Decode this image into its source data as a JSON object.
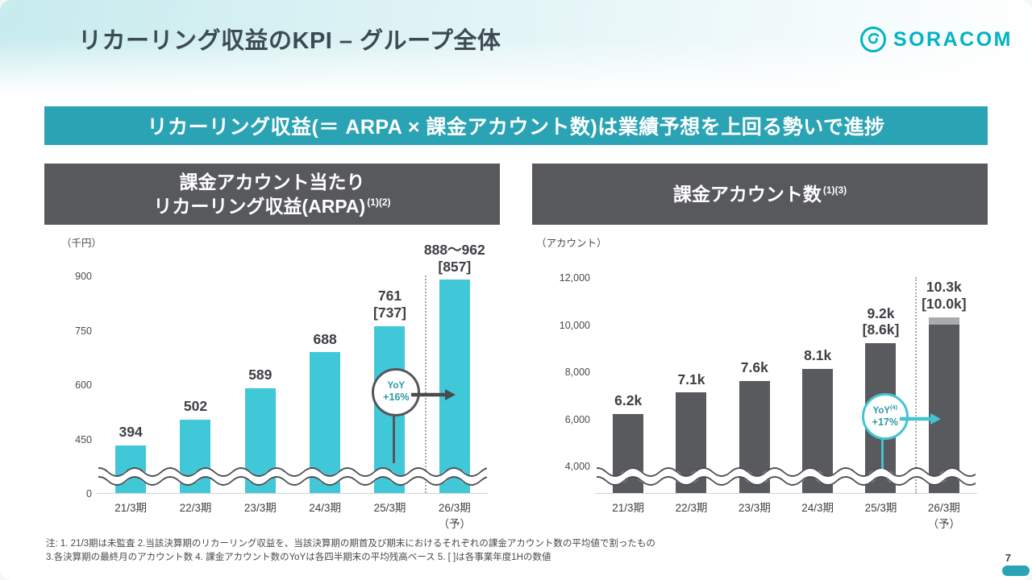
{
  "header": {
    "title": "リカーリング収益のKPI – グループ全体",
    "logo_text": "SORACOM"
  },
  "banner": {
    "text": "リカーリング収益(＝ ARPA × 課金アカウント数)は業績予想を上回る勢いで進捗"
  },
  "footnotes": {
    "line1": "注: 1. 21/3期は未監査  2.当該決算期のリカーリング収益を、当該決算期の期首及び期末におけるそれぞれの課金アカウント数の平均値で割ったもの",
    "line2": "3.各決算期の最終月のアカウント数  4. 課金アカウント数のYoYは各四半期末の平均残高ベース  5. [ ]は各事業年度1Hの数値"
  },
  "page_number": "7",
  "colors": {
    "accent_teal": "#2AA3B4",
    "logo_teal": "#00B3C6",
    "header_gray": "#58595D",
    "bar_teal": "#40C8D8",
    "bar_gray": "#595A5E",
    "bar_gray_light": "#A9ABAE",
    "title_color": "#3C4B52"
  },
  "chart_data": [
    {
      "id": "arpa",
      "type": "bar",
      "header": {
        "line1": "課金アカウント当たり",
        "line2": "リカーリング収益(ARPA)",
        "superscript": "(1)(2)"
      },
      "unit": "（千円）",
      "ylabel": "千円",
      "categories": [
        "21/3期",
        "22/3期",
        "23/3期",
        "24/3期",
        "25/3期",
        "26/3期\n（予）"
      ],
      "values": [
        394,
        502,
        589,
        688,
        761,
        888
      ],
      "bar_caps": [
        null,
        null,
        null,
        null,
        null,
        null
      ],
      "value_labels": [
        "394",
        "502",
        "589",
        "688",
        "761\n[737]",
        "888～962\n[857]"
      ],
      "forecast_range_last": "888～962",
      "first_half_values_note": "[737]・[857]は各事業年度1Hの数値",
      "ytick_values": [
        0,
        450,
        600,
        750,
        900
      ],
      "ytick_labels": [
        "0",
        "450",
        "600",
        "750",
        "900"
      ],
      "ylim": [
        0,
        900
      ],
      "axis_break": true,
      "break_below": 450,
      "grid": false,
      "forecast_separator_after_index": 4,
      "bar_color": "#40C8D8",
      "bar_cap_color": "#9FDDE4",
      "yoy": {
        "label": "YoY",
        "sup": "",
        "value": "+16%",
        "circle_border": "#55565A",
        "text_color": "#2E97A8",
        "arrow_color": "#4A4B4F",
        "stem_color": "#55565A"
      }
    },
    {
      "id": "accounts",
      "type": "bar",
      "header": {
        "line1": "",
        "line2": "課金アカウント数",
        "superscript": "(1)(3)"
      },
      "unit": "（アカウント）",
      "ylabel": "アカウント",
      "categories": [
        "21/3期",
        "22/3期",
        "23/3期",
        "24/3期",
        "25/3期",
        "26/3期\n（予）"
      ],
      "values": [
        6200,
        7100,
        7600,
        8100,
        9200,
        10000
      ],
      "bar_caps": [
        null,
        null,
        null,
        null,
        null,
        10300
      ],
      "value_labels": [
        "6.2k",
        "7.1k",
        "7.6k",
        "8.1k",
        "9.2k\n[8.6k]",
        "10.3k\n[10.0k]"
      ],
      "ytick_values": [
        4000,
        6000,
        8000,
        10000,
        12000
      ],
      "ytick_labels": [
        "4,000",
        "6,000",
        "8,000",
        "10,000",
        "12,000"
      ],
      "ylim": [
        0,
        12000
      ],
      "axis_break": true,
      "break_below": 4000,
      "grid": false,
      "forecast_separator_after_index": 4,
      "bar_color": "#595A5E",
      "bar_cap_color": "#A9ABAE",
      "yoy": {
        "label": "YoY",
        "sup": "(4)",
        "value": "+17%",
        "circle_border": "#44C3D3",
        "text_color": "#2E97A8",
        "arrow_color": "#44C3D3",
        "stem_color": "#44C3D3"
      }
    }
  ]
}
